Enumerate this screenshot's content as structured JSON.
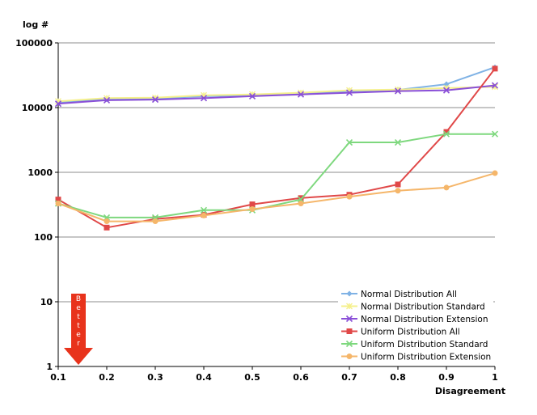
{
  "chart_data": {
    "type": "line",
    "y_scale": "log",
    "ylabel": "log #",
    "xlabel": "Disagreement",
    "xlim": [
      0.1,
      1
    ],
    "ylim": [
      1,
      100000
    ],
    "x_tick_labels": [
      "0.1",
      "0.2",
      "0.3",
      "0.4",
      "0.5",
      "0.6",
      "0.7",
      "0.8",
      "0.9",
      "1"
    ],
    "y_tick_labels": [
      "1",
      "10",
      "100",
      "1000",
      "10000",
      "100000"
    ],
    "x": [
      0.1,
      0.2,
      0.3,
      0.4,
      0.5,
      0.6,
      0.7,
      0.8,
      0.9,
      1.0
    ],
    "grid": "horizontal",
    "legend_position": "bottom-right",
    "annotation": {
      "text": "Better",
      "color": "#e8331c"
    },
    "series": [
      {
        "name": "Normal Distribution All",
        "color": "#7fb2e5",
        "marker": "diamond",
        "values": [
          12000,
          13500,
          13800,
          15000,
          15500,
          16500,
          18000,
          18800,
          23000,
          42000
        ]
      },
      {
        "name": "Normal Distribution Standard",
        "color": "#f5f08c",
        "marker": "star",
        "values": [
          12500,
          14000,
          14200,
          15500,
          16000,
          17000,
          18500,
          19000,
          20000,
          21000
        ]
      },
      {
        "name": "Normal Distribution Extension",
        "color": "#8a4fd8",
        "marker": "x",
        "values": [
          11500,
          13000,
          13300,
          14000,
          15000,
          16000,
          17000,
          18000,
          18500,
          22000
        ]
      },
      {
        "name": "Uniform Distribution All",
        "color": "#e04848",
        "marker": "square",
        "values": [
          380,
          140,
          190,
          220,
          320,
          400,
          450,
          650,
          4200,
          40000
        ]
      },
      {
        "name": "Uniform Distribution Standard",
        "color": "#7ed87e",
        "marker": "x",
        "values": [
          330,
          200,
          200,
          260,
          260,
          380,
          2900,
          2900,
          3900,
          3900
        ]
      },
      {
        "name": "Uniform Distribution Extension",
        "color": "#f5b66a",
        "marker": "circle",
        "values": [
          330,
          175,
          175,
          215,
          270,
          330,
          420,
          520,
          580,
          970
        ]
      }
    ]
  }
}
